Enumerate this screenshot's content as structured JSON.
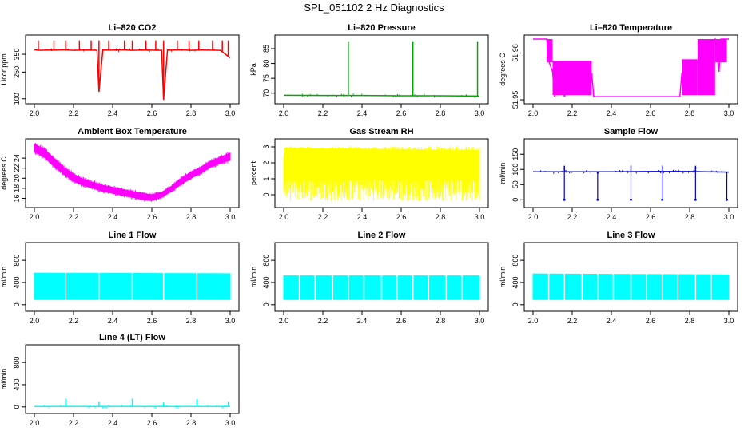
{
  "figure": {
    "title": "SPL_051102  2 Hz Diagnostics"
  },
  "chart_data": [
    {
      "type": "line",
      "title": "Li–820 CO2",
      "xlabel": "",
      "ylabel": "Licor ppm",
      "color": "#ff0000",
      "xlim": [
        2.0,
        3.0
      ],
      "ylim": [
        90,
        440
      ],
      "xticks": [
        2.0,
        2.2,
        2.4,
        2.6,
        2.8,
        3.0
      ],
      "xtick_labels": [
        "2.0",
        "2.2",
        "2.4",
        "2.6",
        "2.8",
        "3.0"
      ],
      "yticks": [
        100,
        250,
        350
      ],
      "ytick_labels": [
        "100",
        "250",
        "350"
      ],
      "series": [
        {
          "x": [
            2.0,
            2.03,
            2.06,
            2.1,
            2.15,
            2.2,
            2.25,
            2.3,
            2.32,
            2.33,
            2.35,
            2.4,
            2.45,
            2.5,
            2.55,
            2.6,
            2.65,
            2.66,
            2.68,
            2.7,
            2.75,
            2.8,
            2.85,
            2.9,
            2.95,
            3.0
          ],
          "y": [
            375,
            372,
            374,
            373,
            375,
            372,
            374,
            373,
            372,
            140,
            374,
            373,
            375,
            372,
            374,
            373,
            372,
            95,
            374,
            373,
            375,
            372,
            374,
            373,
            372,
            330
          ]
        }
      ],
      "spikes_up_x": [
        2.02,
        2.1,
        2.16,
        2.23,
        2.29,
        2.33,
        2.38,
        2.46,
        2.5,
        2.57,
        2.62,
        2.66,
        2.73,
        2.79,
        2.84,
        2.91,
        2.96,
        2.99
      ],
      "spikes_up_y": 428
    },
    {
      "type": "line",
      "title": "Li–820 Pressure",
      "xlabel": "",
      "ylabel": "kPa",
      "color": "#00aa00",
      "xlim": [
        2.0,
        3.0
      ],
      "ylim": [
        67.5,
        88.5
      ],
      "xticks": [
        2.0,
        2.2,
        2.4,
        2.6,
        2.8,
        3.0
      ],
      "xtick_labels": [
        "2.0",
        "2.2",
        "2.4",
        "2.6",
        "2.8",
        "3.0"
      ],
      "yticks": [
        70,
        75,
        80,
        85
      ],
      "ytick_labels": [
        "70",
        "75",
        "80",
        "85"
      ],
      "series": [
        {
          "x": [
            2.0,
            2.2,
            2.4,
            2.6,
            2.8,
            3.0
          ],
          "y": [
            69.3,
            69.2,
            69.2,
            69.1,
            69.1,
            69.0
          ]
        }
      ],
      "spikes_up_x": [
        2.33,
        2.66,
        2.99
      ],
      "spikes_up_y": 87.5
    },
    {
      "type": "line",
      "title": "Li–820 Temperature",
      "xlabel": "",
      "ylabel": "degrees C",
      "color": "#ff00ff",
      "xlim": [
        2.0,
        3.0
      ],
      "ylim": [
        51.9495,
        51.9895
      ],
      "xticks": [
        2.0,
        2.2,
        2.4,
        2.6,
        2.8,
        3.0
      ],
      "xtick_labels": [
        "2.0",
        "2.2",
        "2.4",
        "2.6",
        "2.8",
        "3.0"
      ],
      "yticks": [
        51.95,
        51.98
      ],
      "ytick_labels": [
        "51.95",
        "51.98"
      ],
      "series": [
        {
          "x": [
            2.0,
            2.07,
            2.08,
            2.1,
            2.11,
            2.14,
            2.16,
            2.19,
            2.22,
            2.25,
            2.28,
            2.3,
            2.31,
            2.35,
            2.5,
            2.65,
            2.75,
            2.76,
            2.85,
            2.93,
            2.95,
            2.96,
            3.0
          ],
          "y": [
            51.989,
            51.989,
            51.975,
            51.968,
            51.952,
            51.965,
            51.952,
            51.968,
            51.955,
            51.968,
            51.955,
            51.967,
            51.952,
            51.952,
            51.952,
            51.952,
            51.952,
            51.967,
            51.975,
            51.989,
            51.968,
            51.989,
            51.989
          ]
        }
      ],
      "band_segments": [
        [
          2.07,
          2.1,
          51.974,
          51.989
        ],
        [
          2.1,
          2.3,
          51.953,
          51.975
        ],
        [
          2.76,
          2.84,
          51.953,
          51.976
        ],
        [
          2.84,
          2.93,
          51.953,
          51.989
        ],
        [
          2.93,
          2.99,
          51.974,
          51.989
        ]
      ]
    },
    {
      "type": "area",
      "title": "Ambient Box Temperature",
      "xlabel": "",
      "ylabel": "degrees C",
      "color": "#ff00ff",
      "xlim": [
        2.0,
        3.0
      ],
      "ylim": [
        14.8,
        27.2
      ],
      "xticks": [
        2.0,
        2.2,
        2.4,
        2.6,
        2.8,
        3.0
      ],
      "xtick_labels": [
        "2.0",
        "2.2",
        "2.4",
        "2.6",
        "2.8",
        "3.0"
      ],
      "yticks": [
        16,
        18,
        20,
        22,
        24
      ],
      "ytick_labels": [
        "16",
        "18",
        "20",
        "22",
        "24"
      ],
      "series": [
        {
          "x": [
            2.0,
            2.05,
            2.1,
            2.15,
            2.2,
            2.25,
            2.3,
            2.35,
            2.4,
            2.45,
            2.5,
            2.55,
            2.6,
            2.65,
            2.7,
            2.75,
            2.8,
            2.85,
            2.9,
            2.95,
            3.0
          ],
          "upper": [
            26.8,
            25.8,
            24.0,
            22.2,
            20.8,
            19.8,
            19.2,
            18.6,
            18.2,
            17.8,
            17.4,
            17.0,
            16.7,
            17.2,
            18.4,
            20.0,
            21.2,
            22.2,
            23.4,
            24.2,
            25.0
          ],
          "lower": [
            25.4,
            24.2,
            22.4,
            20.8,
            19.4,
            18.6,
            18.0,
            17.4,
            17.0,
            16.6,
            16.2,
            15.8,
            15.6,
            16.2,
            17.4,
            18.8,
            20.0,
            21.0,
            22.2,
            23.0,
            23.6
          ]
        }
      ]
    },
    {
      "type": "area",
      "title": "Gas Stream RH",
      "xlabel": "",
      "ylabel": "percent",
      "color": "#ffff00",
      "xlim": [
        2.0,
        3.0
      ],
      "ylim": [
        -0.6,
        3.3
      ],
      "xticks": [
        2.0,
        2.2,
        2.4,
        2.6,
        2.8,
        3.0
      ],
      "xtick_labels": [
        "2.0",
        "2.2",
        "2.4",
        "2.6",
        "2.8",
        "3.0"
      ],
      "yticks": [
        0,
        1,
        2,
        3
      ],
      "ytick_labels": [
        "0",
        "1",
        "2",
        "3"
      ],
      "series": [
        {
          "x": [
            2.0,
            3.0
          ],
          "upper": [
            2.95,
            2.8
          ],
          "lower": [
            0.0,
            0.0
          ]
        }
      ],
      "noise_range": [
        -0.4,
        3.05
      ]
    },
    {
      "type": "line",
      "title": "Sample Flow",
      "xlabel": "",
      "ylabel": "ml/min",
      "color": "#0000cc",
      "xlim": [
        2.0,
        3.0
      ],
      "ylim": [
        -15,
        190
      ],
      "xticks": [
        2.0,
        2.2,
        2.4,
        2.6,
        2.8,
        3.0
      ],
      "xtick_labels": [
        "2.0",
        "2.2",
        "2.4",
        "2.6",
        "2.8",
        "3.0"
      ],
      "yticks": [
        0,
        50,
        100,
        150
      ],
      "ytick_labels": [
        "0",
        "50",
        "100",
        "150"
      ],
      "series": [
        {
          "x": [
            2.0,
            2.2,
            2.4,
            2.6,
            2.8,
            3.0
          ],
          "y": [
            92,
            92,
            92,
            93,
            93,
            91
          ]
        }
      ],
      "spikes_down_x": [
        2.16,
        2.33,
        2.5,
        2.66,
        2.83,
        2.99
      ],
      "spikes_down_y": 0,
      "spikes_up_x": [
        2.16,
        2.5,
        2.66,
        2.83
      ],
      "spikes_up_y": 112
    },
    {
      "type": "area",
      "title": "Line 1 Flow",
      "xlabel": "",
      "ylabel": "ml/min",
      "color": "#00ffff",
      "xlim": [
        2.0,
        3.0
      ],
      "ylim": [
        -60,
        1060
      ],
      "xticks": [
        2.0,
        2.2,
        2.4,
        2.6,
        2.8,
        3.0
      ],
      "xtick_labels": [
        "2.0",
        "2.2",
        "2.4",
        "2.6",
        "2.8",
        "3.0"
      ],
      "yticks": [
        0,
        400,
        800
      ],
      "ytick_labels": [
        "0",
        "400",
        "800"
      ],
      "series": [
        {
          "x": [
            2.0,
            3.0
          ],
          "upper": [
            570,
            560
          ],
          "lower": [
            95,
            95
          ]
        }
      ],
      "gaps_x": [
        2.16,
        2.33,
        2.5,
        2.66,
        2.83
      ]
    },
    {
      "type": "area",
      "title": "Line 2 Flow",
      "xlabel": "",
      "ylabel": "ml/min",
      "color": "#00ffff",
      "xlim": [
        2.0,
        3.0
      ],
      "ylim": [
        -60,
        1060
      ],
      "xticks": [
        2.0,
        2.2,
        2.4,
        2.6,
        2.8,
        3.0
      ],
      "xtick_labels": [
        "2.0",
        "2.2",
        "2.4",
        "2.6",
        "2.8",
        "3.0"
      ],
      "yticks": [
        0,
        400,
        800
      ],
      "ytick_labels": [
        "0",
        "400",
        "800"
      ],
      "series": [
        {
          "x": [
            2.0,
            3.0
          ],
          "upper": [
            520,
            520
          ],
          "lower": [
            95,
            95
          ]
        }
      ],
      "gaps_x": [
        2.08,
        2.16,
        2.25,
        2.33,
        2.41,
        2.5,
        2.58,
        2.66,
        2.74,
        2.83,
        2.91
      ]
    },
    {
      "type": "area",
      "title": "Line 3 Flow",
      "xlabel": "",
      "ylabel": "ml/min",
      "color": "#00ffff",
      "xlim": [
        2.0,
        3.0
      ],
      "ylim": [
        -60,
        1060
      ],
      "xticks": [
        2.0,
        2.2,
        2.4,
        2.6,
        2.8,
        3.0
      ],
      "xtick_labels": [
        "2.0",
        "2.2",
        "2.4",
        "2.6",
        "2.8",
        "3.0"
      ],
      "yticks": [
        0,
        400,
        800
      ],
      "ytick_labels": [
        "0",
        "400",
        "800"
      ],
      "series": [
        {
          "x": [
            2.0,
            3.0
          ],
          "upper": [
            555,
            540
          ],
          "lower": [
            95,
            95
          ]
        }
      ],
      "gaps_x": [
        2.08,
        2.16,
        2.25,
        2.33,
        2.41,
        2.5,
        2.58,
        2.66,
        2.74,
        2.83,
        2.91
      ]
    },
    {
      "type": "line",
      "title": "Line 4 (LT) Flow",
      "xlabel": "",
      "ylabel": "ml/min",
      "color": "#00ffff",
      "xlim": [
        2.0,
        3.0
      ],
      "ylim": [
        -60,
        1060
      ],
      "xticks": [
        2.0,
        2.2,
        2.4,
        2.6,
        2.8,
        3.0
      ],
      "xtick_labels": [
        "2.0",
        "2.2",
        "2.4",
        "2.6",
        "2.8",
        "3.0"
      ],
      "yticks": [
        0,
        400,
        800
      ],
      "ytick_labels": [
        "0",
        "400",
        "800"
      ],
      "series": [
        {
          "x": [
            2.0,
            3.0
          ],
          "y": [
            8,
            8
          ]
        }
      ],
      "spikes_up_x": [
        2.16,
        2.33,
        2.5,
        2.66,
        2.83,
        2.99
      ],
      "spikes_up_values": [
        150,
        90,
        150,
        80,
        140,
        90
      ]
    }
  ]
}
